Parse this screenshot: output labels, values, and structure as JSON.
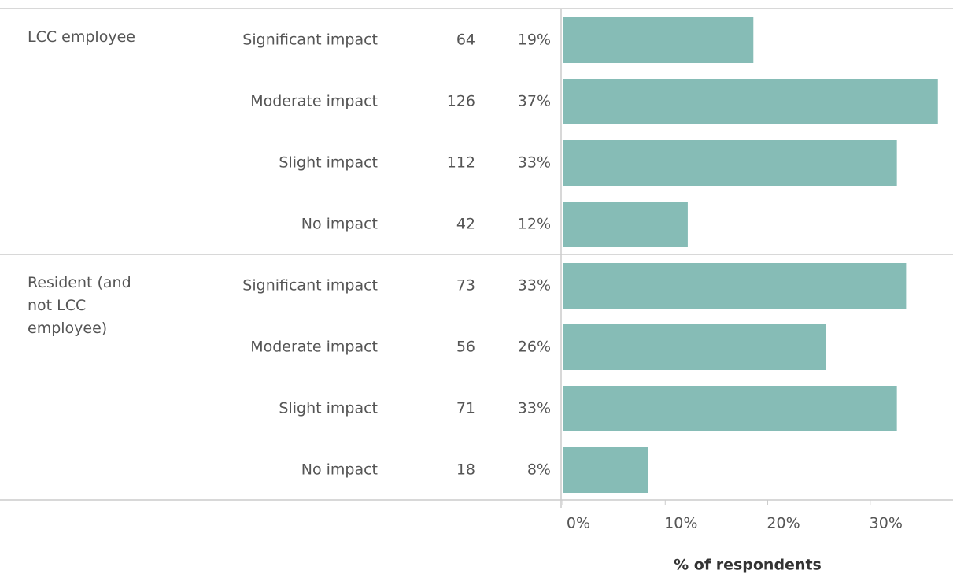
{
  "chart_data": {
    "type": "bar",
    "xlabel": "% of respondents",
    "color": "#86bcb6",
    "groups": [
      {
        "name": "LCC employee",
        "categories": [
          "Significant impact",
          "Moderate impact",
          "Slight impact",
          "No impact"
        ],
        "counts": [
          64,
          126,
          112,
          42
        ],
        "values": [
          18.6,
          36.6,
          32.6,
          12.2
        ],
        "value_labels": [
          "19%",
          "37%",
          "33%",
          "12%"
        ]
      },
      {
        "name": "Resident (and not LCC employee)",
        "categories": [
          "Significant impact",
          "Moderate impact",
          "Slight impact",
          "No impact"
        ],
        "counts": [
          73,
          56,
          71,
          18
        ],
        "values": [
          33.5,
          25.7,
          32.6,
          8.3
        ],
        "value_labels": [
          "33%",
          "26%",
          "33%",
          "8%"
        ]
      }
    ],
    "xlim": [
      0,
      38
    ],
    "xticks": [
      {
        "value": 0,
        "label": "0%"
      },
      {
        "value": 10,
        "label": "10%"
      },
      {
        "value": 20,
        "label": "20%"
      },
      {
        "value": 30,
        "label": "30%"
      }
    ]
  }
}
